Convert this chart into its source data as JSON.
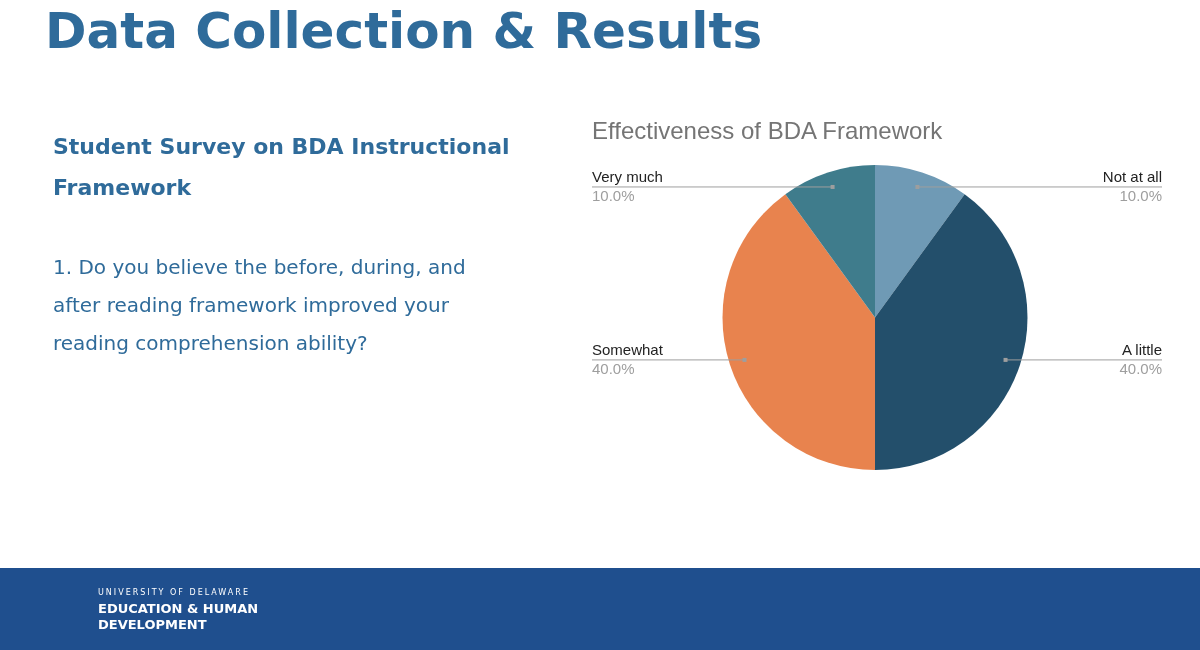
{
  "chart_data": {
    "type": "pie",
    "title": "Effectiveness of BDA Framework",
    "categories": [
      "Not at all",
      "A little",
      "Somewhat",
      "Very much"
    ],
    "values": [
      10,
      40,
      40,
      10
    ],
    "value_labels": [
      "10.0%",
      "40.0%",
      "40.0%",
      "10.0%"
    ],
    "colors": [
      "#6f9ab5",
      "#234f6b",
      "#e8834e",
      "#3f7c8c"
    ],
    "legend": false,
    "annotations": [
      "Data Collection & Results",
      "Student Survey on BDA Instructional Framework",
      "1. Do you believe the before, during, and after reading framework improved your reading comprehension ability?",
      "UNIVERSITY OF DELAWARE",
      "EDUCATION & HUMAN DEVELOPMENT"
    ]
  }
}
